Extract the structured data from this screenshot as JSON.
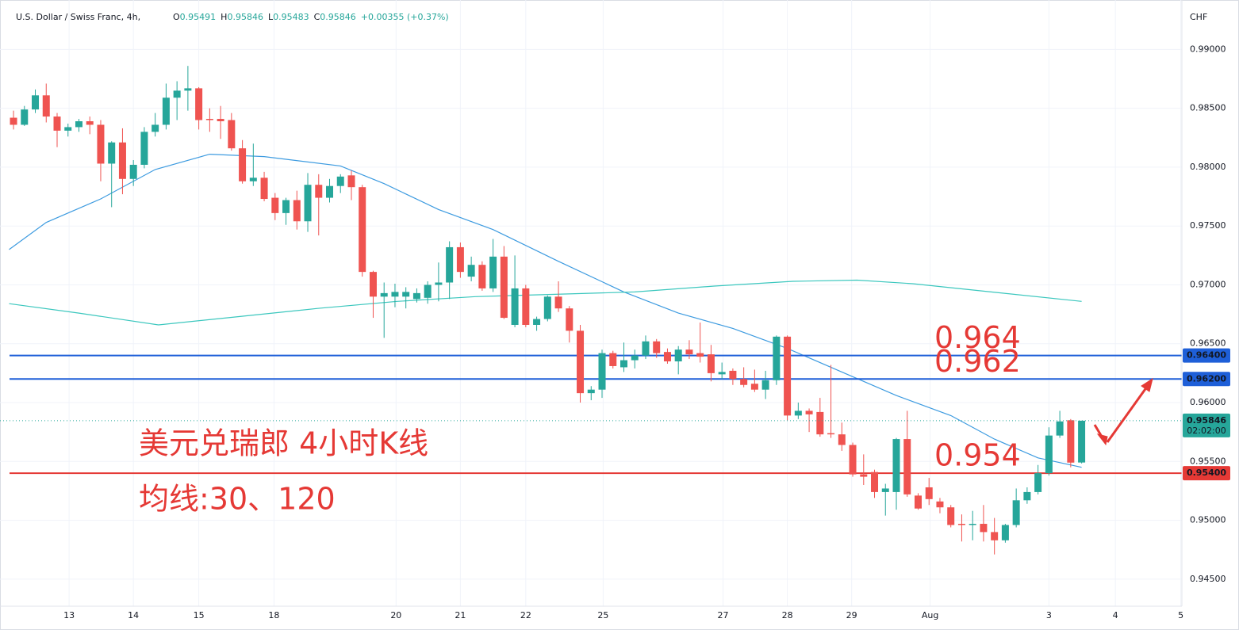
{
  "header": {
    "symbol": "U.S. Dollar / Swiss Franc, 4h,",
    "ohlc": [
      {
        "label": "O",
        "value": "0.95491"
      },
      {
        "label": "H",
        "value": "0.95846"
      },
      {
        "label": "L",
        "value": "0.95483"
      },
      {
        "label": "C",
        "value": "0.95846"
      }
    ],
    "change": "+0.00355 (+0.37%)"
  },
  "chart_data": {
    "type": "candlestick",
    "ylabel": "CHF",
    "up_color": "#26a69a",
    "down_color": "#ef5350",
    "grid": true,
    "xlim": [
      -1.24,
      107.2
    ],
    "ylim": [
      0.9427,
      0.9942
    ],
    "xticks": [
      {
        "value": 5.1,
        "label": "13"
      },
      {
        "value": 11,
        "label": "14"
      },
      {
        "value": 17,
        "label": "15"
      },
      {
        "value": 23.9,
        "label": "18"
      },
      {
        "value": 35.1,
        "label": "20"
      },
      {
        "value": 41,
        "label": "21"
      },
      {
        "value": 47,
        "label": "22"
      },
      {
        "value": 54.1,
        "label": "25"
      },
      {
        "value": 65.1,
        "label": "27"
      },
      {
        "value": 71,
        "label": "28"
      },
      {
        "value": 76.9,
        "label": "29"
      },
      {
        "value": 84.1,
        "label": "Aug"
      },
      {
        "value": 95,
        "label": "3"
      },
      {
        "value": 101.1,
        "label": "4"
      },
      {
        "value": 107.1,
        "label": "5"
      }
    ],
    "yticks": [
      {
        "value": 0.945,
        "label": "0.94500"
      },
      {
        "value": 0.95,
        "label": "0.95000"
      },
      {
        "value": 0.955,
        "label": "0.95500"
      },
      {
        "value": 0.96,
        "label": "0.96000"
      },
      {
        "value": 0.965,
        "label": "0.96500"
      },
      {
        "value": 0.97,
        "label": "0.97000"
      },
      {
        "value": 0.975,
        "label": "0.97500"
      },
      {
        "value": 0.98,
        "label": "0.98000"
      },
      {
        "value": 0.985,
        "label": "0.98500"
      },
      {
        "value": 0.99,
        "label": "0.99000"
      }
    ],
    "x": [
      0,
      1,
      2,
      3,
      4,
      5,
      6,
      7,
      8,
      9,
      10,
      11,
      12,
      13,
      14,
      15,
      16,
      17,
      18,
      19,
      20,
      21,
      22,
      23,
      24,
      25,
      26,
      27,
      28,
      29,
      30,
      31,
      32,
      33,
      34,
      35,
      36,
      37,
      38,
      39,
      40,
      41,
      42,
      43,
      44,
      45,
      46,
      47,
      48,
      49,
      50,
      51,
      52,
      53,
      54,
      55,
      56,
      57,
      58,
      59,
      60,
      61,
      62,
      63,
      64,
      65,
      66,
      67,
      68,
      69,
      70,
      71,
      72,
      73,
      74,
      75,
      76,
      77,
      78,
      79,
      80,
      81,
      82,
      83,
      84,
      85,
      86,
      87,
      88,
      89,
      90,
      91,
      92,
      93,
      94,
      95,
      96,
      97,
      98
    ],
    "open": [
      0.9842,
      0.9836,
      0.9849,
      0.9861,
      0.9843,
      0.9831,
      0.9834,
      0.9839,
      0.9836,
      0.9803,
      0.9821,
      0.979,
      0.9802,
      0.983,
      0.9836,
      0.9859,
      0.9865,
      0.9867,
      0.9841,
      0.9841,
      0.984,
      0.9816,
      0.9788,
      0.9791,
      0.9774,
      0.9761,
      0.9772,
      0.9754,
      0.9785,
      0.9774,
      0.9784,
      0.9793,
      0.9783,
      0.9711,
      0.969,
      0.969,
      0.969,
      0.9688,
      0.9689,
      0.97,
      0.9702,
      0.9732,
      0.9707,
      0.9717,
      0.9697,
      0.9724,
      0.9666,
      0.9697,
      0.9666,
      0.9671,
      0.969,
      0.968,
      0.9661,
      0.9608,
      0.9611,
      0.9642,
      0.963,
      0.9636,
      0.964,
      0.9652,
      0.9643,
      0.9635,
      0.9645,
      0.9642,
      0.9641,
      0.9624,
      0.9627,
      0.962,
      0.9616,
      0.9611,
      0.9619,
      0.9656,
      0.9589,
      0.9593,
      0.9592,
      0.9574,
      0.9573,
      0.9564,
      0.9539,
      0.9541,
      0.9524,
      0.9524,
      0.9569,
      0.9521,
      0.9528,
      0.9516,
      0.9511,
      0.9497,
      0.9496,
      0.9497,
      0.949,
      0.9483,
      0.9496,
      0.9517,
      0.9524,
      0.954,
      0.9572,
      0.9585,
      0.95491
    ],
    "high": [
      0.9848,
      0.9852,
      0.9866,
      0.9871,
      0.9846,
      0.9837,
      0.9841,
      0.9843,
      0.984,
      0.9822,
      0.9833,
      0.9806,
      0.9834,
      0.9846,
      0.9871,
      0.9873,
      0.9886,
      0.9868,
      0.985,
      0.9852,
      0.9846,
      0.9823,
      0.982,
      0.9796,
      0.9778,
      0.9774,
      0.978,
      0.9795,
      0.9794,
      0.979,
      0.9794,
      0.9797,
      0.9785,
      0.9712,
      0.9702,
      0.9701,
      0.9698,
      0.9697,
      0.9703,
      0.9719,
      0.9737,
      0.9736,
      0.9724,
      0.972,
      0.9739,
      0.9733,
      0.9725,
      0.97,
      0.9673,
      0.9691,
      0.9703,
      0.9682,
      0.9666,
      0.9614,
      0.9645,
      0.9644,
      0.9651,
      0.9645,
      0.9657,
      0.9654,
      0.9646,
      0.9648,
      0.9653,
      0.9668,
      0.9649,
      0.9634,
      0.9629,
      0.963,
      0.9628,
      0.9627,
      0.9657,
      0.9657,
      0.96,
      0.9595,
      0.9604,
      0.9632,
      0.9583,
      0.9566,
      0.9556,
      0.9543,
      0.9531,
      0.957,
      0.9593,
      0.9523,
      0.9536,
      0.9519,
      0.9513,
      0.9505,
      0.9508,
      0.9513,
      0.9502,
      0.9497,
      0.9527,
      0.9528,
      0.9547,
      0.9579,
      0.9593,
      0.9586,
      0.95846
    ],
    "low": [
      0.9832,
      0.9835,
      0.9846,
      0.9838,
      0.9817,
      0.9826,
      0.983,
      0.9828,
      0.9788,
      0.9766,
      0.9777,
      0.9784,
      0.9799,
      0.9826,
      0.9832,
      0.984,
      0.9848,
      0.9832,
      0.983,
      0.9824,
      0.9814,
      0.9786,
      0.9784,
      0.9771,
      0.9755,
      0.9751,
      0.9747,
      0.9745,
      0.9742,
      0.977,
      0.9778,
      0.9772,
      0.9707,
      0.9672,
      0.9655,
      0.9681,
      0.968,
      0.9685,
      0.9684,
      0.9686,
      0.9688,
      0.9706,
      0.9703,
      0.9695,
      0.9694,
      0.9671,
      0.9664,
      0.9664,
      0.9661,
      0.9669,
      0.9677,
      0.9651,
      0.96,
      0.9602,
      0.9604,
      0.9629,
      0.9626,
      0.9629,
      0.9637,
      0.9638,
      0.9633,
      0.9624,
      0.9637,
      0.9634,
      0.9618,
      0.962,
      0.9615,
      0.9613,
      0.9609,
      0.9603,
      0.9615,
      0.9585,
      0.9586,
      0.9575,
      0.9571,
      0.957,
      0.9559,
      0.9537,
      0.953,
      0.9519,
      0.9504,
      0.9509,
      0.952,
      0.9509,
      0.9513,
      0.9506,
      0.9494,
      0.9482,
      0.9483,
      0.9482,
      0.9471,
      0.9481,
      0.9494,
      0.9514,
      0.9522,
      0.9538,
      0.957,
      0.9545,
      0.95483
    ],
    "close": [
      0.9836,
      0.9849,
      0.9861,
      0.9843,
      0.9831,
      0.9834,
      0.9839,
      0.9836,
      0.9803,
      0.9821,
      0.979,
      0.9802,
      0.983,
      0.9836,
      0.9859,
      0.9865,
      0.9867,
      0.984,
      0.984,
      0.9839,
      0.9816,
      0.9788,
      0.9791,
      0.9773,
      0.9761,
      0.9772,
      0.9754,
      0.9785,
      0.9774,
      0.9784,
      0.9792,
      0.9783,
      0.9711,
      0.969,
      0.9693,
      0.9694,
      0.9694,
      0.9693,
      0.97,
      0.9702,
      0.9732,
      0.9711,
      0.9717,
      0.9697,
      0.9724,
      0.9672,
      0.9697,
      0.9666,
      0.9671,
      0.969,
      0.968,
      0.9661,
      0.9608,
      0.9611,
      0.9642,
      0.9631,
      0.9636,
      0.964,
      0.9652,
      0.9642,
      0.9635,
      0.9645,
      0.9641,
      0.9639,
      0.9625,
      0.9626,
      0.962,
      0.9615,
      0.9611,
      0.9619,
      0.9656,
      0.9589,
      0.9593,
      0.959,
      0.9573,
      0.9573,
      0.9564,
      0.9539,
      0.9537,
      0.9524,
      0.9527,
      0.9569,
      0.9522,
      0.951,
      0.9518,
      0.9511,
      0.9496,
      0.9496,
      0.9497,
      0.949,
      0.9483,
      0.9496,
      0.9517,
      0.9524,
      0.954,
      0.9572,
      0.9584,
      0.9549,
      0.95846
    ],
    "lines": [
      {
        "color": "#3d9be0",
        "x": [
          -0.4,
          3,
          8,
          13,
          18,
          23,
          30,
          34,
          39,
          44,
          50,
          56,
          61,
          66,
          71,
          76,
          81,
          86,
          90,
          94,
          98
        ],
        "values": [
          0.973,
          0.9753,
          0.9773,
          0.9798,
          0.9811,
          0.9809,
          0.9801,
          0.9786,
          0.9764,
          0.9747,
          0.972,
          0.9694,
          0.9676,
          0.9663,
          0.9646,
          0.9626,
          0.9606,
          0.9589,
          0.9569,
          0.9553,
          0.9545
        ]
      },
      {
        "color": "#3cc7be",
        "x": [
          -0.4,
          6,
          13.3,
          20.6,
          27.9,
          35.2,
          42.4,
          49.7,
          57,
          64.3,
          71.5,
          77.4,
          82.5,
          89.7,
          98
        ],
        "values": [
          0.9684,
          0.9676,
          0.9666,
          0.9673,
          0.968,
          0.9686,
          0.969,
          0.9692,
          0.9694,
          0.9699,
          0.9703,
          0.9704,
          0.9701,
          0.9694,
          0.9686
        ]
      }
    ],
    "levels": [
      {
        "value": 0.964,
        "label": "0.964",
        "price_label": "0.96400",
        "color": "#1e5fd8"
      },
      {
        "value": 0.962,
        "label": "0.962",
        "price_label": "0.96200",
        "color": "#1e5fd8"
      },
      {
        "value": 0.954,
        "label": "0.954",
        "price_label": "0.95400",
        "color": "#e53935"
      }
    ],
    "last_price": {
      "value": 0.95846,
      "label": "0.95846",
      "countdown": "02:02:00"
    },
    "annotations": [
      "美元兑瑞郎 4小时K线",
      "均线:30、120"
    ]
  }
}
